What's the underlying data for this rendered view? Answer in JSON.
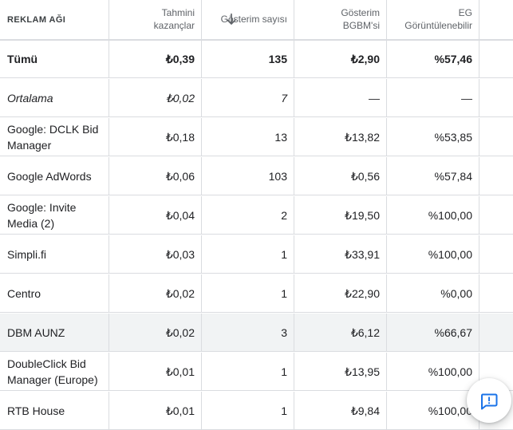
{
  "columns": {
    "network": "REKLAM AĞI",
    "earnings": "Tahmini kazançlar",
    "impressions": "Gösterim sayısı",
    "rpm": "Gösterim BGBM'si",
    "viewable": "EG Görüntülenebilir"
  },
  "sort_icon": "arrow-downward-icon",
  "rows": [
    {
      "name": "Tümü",
      "earnings": "₺0,39",
      "impressions": "135",
      "rpm": "₺2,90",
      "viewable": "%57,46"
    },
    {
      "name": "Ortalama",
      "earnings": "₺0,02",
      "impressions": "7",
      "rpm": "—",
      "viewable": "—"
    },
    {
      "name": "Google: DCLK Bid Manager",
      "earnings": "₺0,18",
      "impressions": "13",
      "rpm": "₺13,82",
      "viewable": "%53,85"
    },
    {
      "name": "Google AdWords",
      "earnings": "₺0,06",
      "impressions": "103",
      "rpm": "₺0,56",
      "viewable": "%57,84"
    },
    {
      "name": "Google: Invite Media (2)",
      "earnings": "₺0,04",
      "impressions": "2",
      "rpm": "₺19,50",
      "viewable": "%100,00"
    },
    {
      "name": "Simpli.fi",
      "earnings": "₺0,03",
      "impressions": "1",
      "rpm": "₺33,91",
      "viewable": "%100,00"
    },
    {
      "name": "Centro",
      "earnings": "₺0,02",
      "impressions": "1",
      "rpm": "₺22,90",
      "viewable": "%0,00"
    },
    {
      "name": "DBM AUNZ",
      "earnings": "₺0,02",
      "impressions": "3",
      "rpm": "₺6,12",
      "viewable": "%66,67"
    },
    {
      "name": "DoubleClick Bid Manager (Europe)",
      "earnings": "₺0,01",
      "impressions": "1",
      "rpm": "₺13,95",
      "viewable": "%100,00"
    },
    {
      "name": "RTB House",
      "earnings": "₺0,01",
      "impressions": "1",
      "rpm": "₺9,84",
      "viewable": "%100,00"
    }
  ],
  "feedback_icon": "feedback-icon"
}
